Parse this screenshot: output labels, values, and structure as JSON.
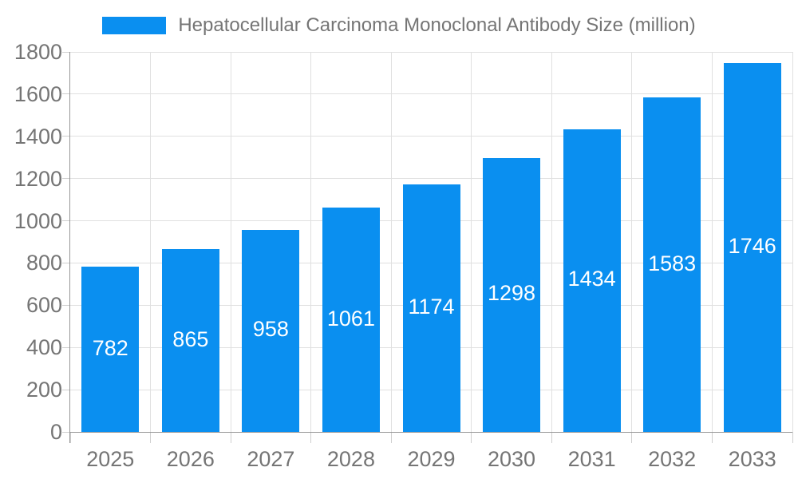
{
  "chart_data": {
    "type": "bar",
    "title": "Hepatocellular Carcinoma Monoclonal Antibody Size (million)",
    "categories": [
      "2025",
      "2026",
      "2027",
      "2028",
      "2029",
      "2030",
      "2031",
      "2032",
      "2033"
    ],
    "values": [
      782,
      865,
      958,
      1061,
      1174,
      1298,
      1434,
      1583,
      1746
    ],
    "xlabel": "",
    "ylabel": "",
    "ylim": [
      0,
      1800
    ],
    "ytick_step": 200,
    "ytick_labels": [
      "0",
      "200",
      "400",
      "600",
      "800",
      "1000",
      "1200",
      "1400",
      "1600",
      "1800"
    ],
    "grid": true,
    "legend_position": "top",
    "colors": {
      "bar": "#0a8ff0",
      "value_label": "#ffffff",
      "axis_text": "#757575",
      "grid_line": "#e0e0e0",
      "axis_line": "#969696",
      "minor_tick": "#cfcfcf",
      "background": "#ffffff"
    }
  }
}
